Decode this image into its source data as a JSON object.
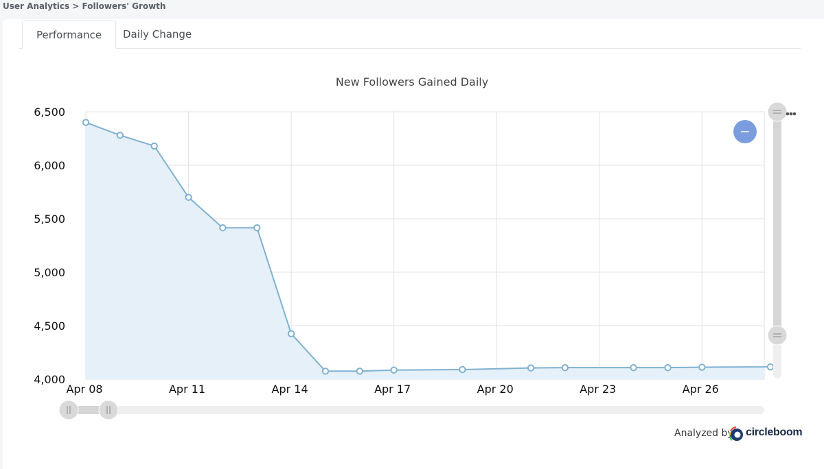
{
  "breadcrumb": "User Analytics > Followers' Growth",
  "tabs": [
    {
      "label": "Performance",
      "active": true
    },
    {
      "label": "Daily Change",
      "active": false
    }
  ],
  "footer": {
    "analyzed_by": "Analyzed by",
    "brand": "circleboom"
  },
  "colors": {
    "line": "#7fb1d1",
    "area": "#e6f0f8",
    "grid": "#e2e2e2",
    "zoom_button": "#7b9de0"
  },
  "chart_data": {
    "type": "area",
    "title": "New Followers Gained Daily",
    "xlabel": "",
    "ylabel": "",
    "x_dates": [
      "Apr 08",
      "Apr 09",
      "Apr 10",
      "Apr 11",
      "Apr 12",
      "Apr 13",
      "Apr 14",
      "Apr 15",
      "Apr 16",
      "Apr 17",
      "Apr 19",
      "Apr 21",
      "Apr 22",
      "Apr 24",
      "Apr 25",
      "Apr 26",
      "Apr 28"
    ],
    "values": [
      6400,
      6280,
      6180,
      5700,
      5415,
      5415,
      4425,
      4075,
      4075,
      4085,
      4090,
      4105,
      4108,
      4108,
      4108,
      4112,
      4115
    ],
    "x_tick_labels": [
      "Apr 08",
      "Apr 11",
      "Apr 14",
      "Apr 17",
      "Apr 20",
      "Apr 23",
      "Apr 26"
    ],
    "y_tick_labels": [
      "6,500",
      "6,000",
      "5,500",
      "5,000",
      "4,500",
      "4,000"
    ],
    "y_ticks": [
      6500,
      6000,
      5500,
      5000,
      4500,
      4000
    ],
    "ylim": [
      4000,
      6500
    ],
    "grid": true
  }
}
